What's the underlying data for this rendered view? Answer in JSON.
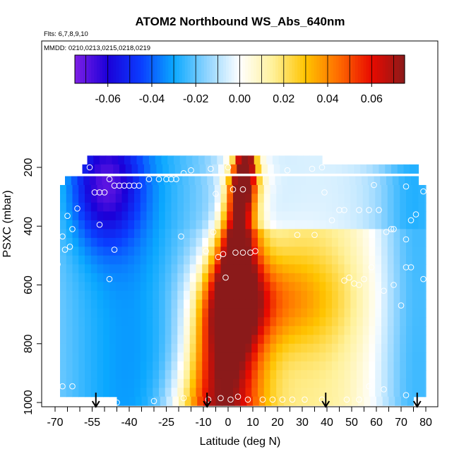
{
  "chart_data": {
    "type": "heatmap",
    "title": "ATOM2 Northbound WS_Abs_640nm",
    "subtitle": "Flts: 6,7,8,9,10",
    "annotation": "MMDD: 0210,0213,0215,0218,0219",
    "xlabel": "Latitude (deg N)",
    "ylabel": "PSXC (mbar)",
    "xlim": [
      -70,
      80
    ],
    "ylim": [
      1000,
      50
    ],
    "y_reversed": true,
    "x_tick_labels": [
      "-70",
      "-55",
      "-40",
      "-25",
      "-10",
      "0",
      "10",
      "20",
      "30",
      "40",
      "50",
      "60",
      "70",
      "80"
    ],
    "x_tick_values": [
      -70,
      -55,
      -40,
      -25,
      -10,
      0,
      10,
      20,
      30,
      40,
      50,
      60,
      70,
      80
    ],
    "x_minor_tick_step": 5,
    "y_tick_labels": [
      "200",
      "400",
      "600",
      "800",
      "1000"
    ],
    "y_tick_values": [
      200,
      400,
      600,
      800,
      1000
    ],
    "colorbar": {
      "min": -0.075,
      "max": 0.075,
      "tick_labels": [
        "-0.06",
        "-0.04",
        "-0.02",
        "0.00",
        "0.02",
        "0.04",
        "0.06"
      ],
      "tick_values": [
        -0.06,
        -0.04,
        -0.02,
        0.0,
        0.02,
        0.04,
        0.06
      ],
      "colors": [
        "#7e1fe6",
        "#1b00d8",
        "#0a3dff",
        "#0aa8ff",
        "#8fd4ff",
        "#ffffff",
        "#fff19a",
        "#ffc400",
        "#ff6b00",
        "#e80a00",
        "#8b1a1a"
      ]
    },
    "pressure_levels": [
      175,
      205,
      245,
      275,
      305,
      335,
      365,
      395,
      425,
      455,
      485,
      515,
      545,
      575,
      605,
      635,
      665,
      695,
      725,
      755,
      785,
      815,
      845,
      875,
      905,
      935,
      965,
      995
    ],
    "row_x_ranges": [
      [
        -57,
        38
      ],
      [
        -59,
        77
      ],
      [
        -66,
        77
      ],
      [
        -68,
        80
      ],
      [
        -68,
        80
      ],
      [
        -68,
        80
      ],
      [
        -68,
        80
      ],
      [
        -68,
        80
      ],
      [
        -68,
        80
      ],
      [
        -68,
        80
      ],
      [
        -68,
        80
      ],
      [
        -68,
        80
      ],
      [
        -68,
        80
      ],
      [
        -68,
        80
      ],
      [
        -68,
        80
      ],
      [
        -68,
        80
      ],
      [
        -68,
        80
      ],
      [
        -68,
        80
      ],
      [
        -68,
        80
      ],
      [
        -68,
        80
      ],
      [
        -68,
        80
      ],
      [
        -68,
        80
      ],
      [
        -68,
        80
      ],
      [
        -68,
        80
      ],
      [
        -68,
        80
      ],
      [
        -68,
        80
      ],
      [
        -68,
        80
      ],
      [
        -45,
        75
      ]
    ],
    "flight_profile_markers_lat": [
      -53.5,
      -8.5,
      39.5,
      76.5
    ],
    "sample_points": [
      {
        "x": -66,
        "y": 205
      },
      {
        "x": -61,
        "y": 195
      },
      {
        "x": -56,
        "y": 200
      },
      {
        "x": -48,
        "y": 240
      },
      {
        "x": -46,
        "y": 262
      },
      {
        "x": -44,
        "y": 262
      },
      {
        "x": -42,
        "y": 262
      },
      {
        "x": -40,
        "y": 262
      },
      {
        "x": -38,
        "y": 262
      },
      {
        "x": -36,
        "y": 262
      },
      {
        "x": -32,
        "y": 240
      },
      {
        "x": -28,
        "y": 240
      },
      {
        "x": -25,
        "y": 240
      },
      {
        "x": -23,
        "y": 240
      },
      {
        "x": -21,
        "y": 240
      },
      {
        "x": -18,
        "y": 220
      },
      {
        "x": -15,
        "y": 210
      },
      {
        "x": -7,
        "y": 205
      },
      {
        "x": 0,
        "y": 200
      },
      {
        "x": 24,
        "y": 210
      },
      {
        "x": 34,
        "y": 205
      },
      {
        "x": 38,
        "y": 200
      },
      {
        "x": -54,
        "y": 285
      },
      {
        "x": -52,
        "y": 285
      },
      {
        "x": -50,
        "y": 285
      },
      {
        "x": -5,
        "y": 290
      },
      {
        "x": 2,
        "y": 275
      },
      {
        "x": 6,
        "y": 275
      },
      {
        "x": 39,
        "y": 285
      },
      {
        "x": 59,
        "y": 260
      },
      {
        "x": 72,
        "y": 265
      },
      {
        "x": 79,
        "y": 282
      },
      {
        "x": -61,
        "y": 340
      },
      {
        "x": -65,
        "y": 365
      },
      {
        "x": -52,
        "y": 395
      },
      {
        "x": -67,
        "y": 435
      },
      {
        "x": -63,
        "y": 410
      },
      {
        "x": -66,
        "y": 480
      },
      {
        "x": -64,
        "y": 470
      },
      {
        "x": -46,
        "y": 480
      },
      {
        "x": -6,
        "y": 420
      },
      {
        "x": -19,
        "y": 435
      },
      {
        "x": -9,
        "y": 485
      },
      {
        "x": -4,
        "y": 505
      },
      {
        "x": -2,
        "y": 495
      },
      {
        "x": 3,
        "y": 490
      },
      {
        "x": 6,
        "y": 490
      },
      {
        "x": 9,
        "y": 490
      },
      {
        "x": 11,
        "y": 485
      },
      {
        "x": -69,
        "y": 530
      },
      {
        "x": 28,
        "y": 430
      },
      {
        "x": 35,
        "y": 430
      },
      {
        "x": 42,
        "y": 380
      },
      {
        "x": 45,
        "y": 345
      },
      {
        "x": 47,
        "y": 345
      },
      {
        "x": 53,
        "y": 345
      },
      {
        "x": 57,
        "y": 345
      },
      {
        "x": 61,
        "y": 345
      },
      {
        "x": 66,
        "y": 410
      },
      {
        "x": 67,
        "y": 410
      },
      {
        "x": 74,
        "y": 380
      },
      {
        "x": 76,
        "y": 360
      },
      {
        "x": 72,
        "y": 445
      },
      {
        "x": 64,
        "y": 420
      },
      {
        "x": -48,
        "y": 580
      },
      {
        "x": -1,
        "y": 575
      },
      {
        "x": 47,
        "y": 585
      },
      {
        "x": 49,
        "y": 575
      },
      {
        "x": 51,
        "y": 595
      },
      {
        "x": 53,
        "y": 600
      },
      {
        "x": 55,
        "y": 580
      },
      {
        "x": 72,
        "y": 540
      },
      {
        "x": 74,
        "y": 540
      },
      {
        "x": 79,
        "y": 580
      },
      {
        "x": 58,
        "y": 540
      },
      {
        "x": 63,
        "y": 620
      },
      {
        "x": 67,
        "y": 600
      },
      {
        "x": 70,
        "y": 670
      },
      {
        "x": -69,
        "y": 945
      },
      {
        "x": -67,
        "y": 945
      },
      {
        "x": -63,
        "y": 945
      },
      {
        "x": -45,
        "y": 1000
      },
      {
        "x": -30,
        "y": 995
      },
      {
        "x": -18,
        "y": 985
      },
      {
        "x": -8,
        "y": 990
      },
      {
        "x": -3,
        "y": 985
      },
      {
        "x": 1,
        "y": 990
      },
      {
        "x": 4,
        "y": 980
      },
      {
        "x": 8,
        "y": 990
      },
      {
        "x": 14,
        "y": 990
      },
      {
        "x": 18,
        "y": 990
      },
      {
        "x": 22,
        "y": 990
      },
      {
        "x": 26,
        "y": 990
      },
      {
        "x": 31,
        "y": 990
      },
      {
        "x": 38,
        "y": 990
      },
      {
        "x": 48,
        "y": 990
      },
      {
        "x": 53,
        "y": 990
      },
      {
        "x": 57,
        "y": 945
      },
      {
        "x": 63,
        "y": 955
      },
      {
        "x": 72,
        "y": 975
      }
    ]
  }
}
